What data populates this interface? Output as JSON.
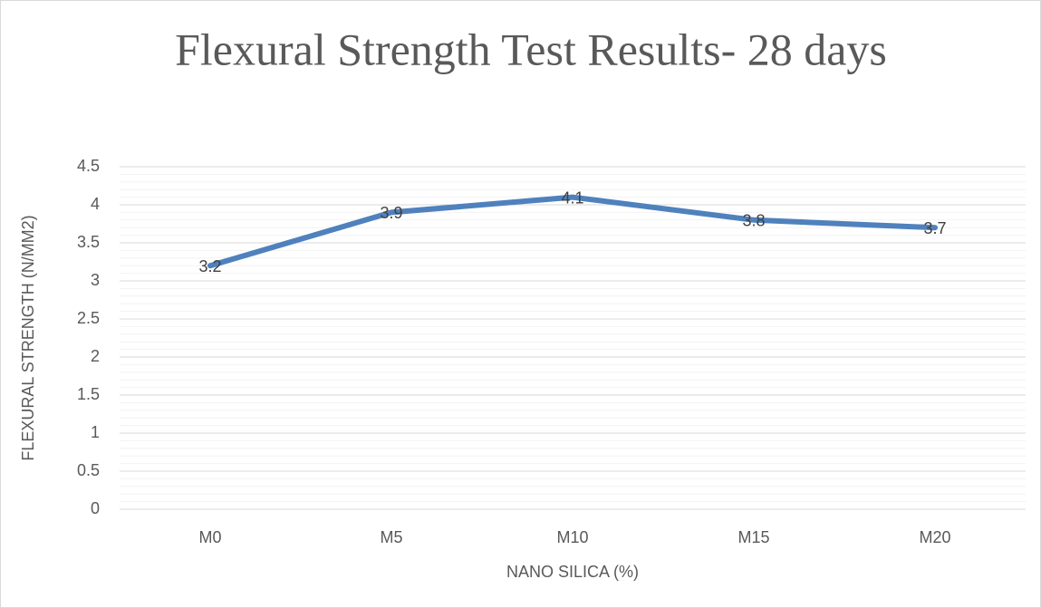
{
  "chart_data": {
    "type": "line",
    "title": "Flexural Strength Test Results- 28 days",
    "x_label": "NANO SILICA (%)",
    "y_label": "FLEXURAL STRENGTH (N/MM2)",
    "categories": [
      "M0",
      "M5",
      "M10",
      "M15",
      "M20"
    ],
    "series": [
      {
        "name": "Flexural Strength",
        "color": "#4f81bd",
        "values": [
          3.2,
          3.9,
          4.1,
          3.8,
          3.7
        ]
      }
    ],
    "ylim": [
      0,
      4.5
    ],
    "yticks": [
      0,
      0.5,
      1,
      1.5,
      2,
      2.5,
      3,
      3.5,
      4,
      4.5
    ],
    "grid": true,
    "minor_grid": true,
    "data_labels": true
  }
}
